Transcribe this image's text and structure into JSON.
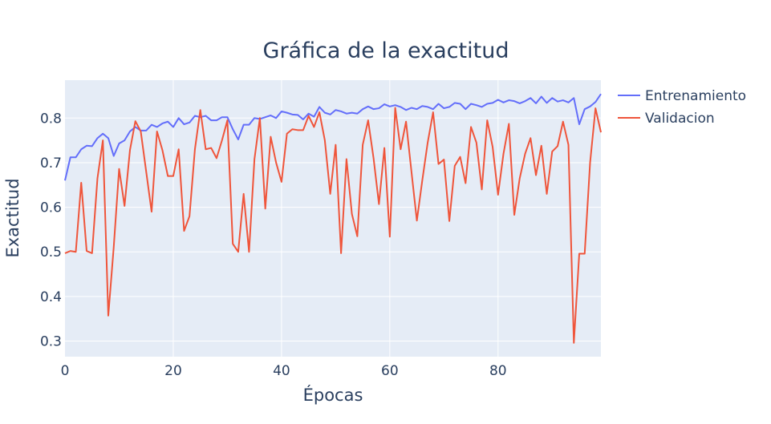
{
  "chart_data": {
    "type": "line",
    "title": "Gráfica de la exactitud",
    "xlabel": "Épocas",
    "ylabel": "Exactitud",
    "xlim": [
      0,
      99
    ],
    "ylim": [
      0.265,
      0.885
    ],
    "x_ticks": [
      0,
      20,
      40,
      60,
      80
    ],
    "y_ticks": [
      0.3,
      0.4,
      0.5,
      0.6,
      0.7,
      0.8
    ],
    "x_tick_labels": [
      "0",
      "20",
      "40",
      "60",
      "80"
    ],
    "y_tick_labels": [
      "0.3",
      "0.4",
      "0.5",
      "0.6",
      "0.7",
      "0.8"
    ],
    "grid": true,
    "legend_position": "top-right",
    "plot_background": "#e5ecf6",
    "series": [
      {
        "name": "Entrenamiento",
        "color": "#636efa",
        "values": [
          0.66,
          0.712,
          0.712,
          0.73,
          0.738,
          0.737,
          0.755,
          0.765,
          0.755,
          0.715,
          0.743,
          0.75,
          0.77,
          0.78,
          0.772,
          0.772,
          0.785,
          0.78,
          0.788,
          0.792,
          0.78,
          0.8,
          0.786,
          0.79,
          0.805,
          0.802,
          0.805,
          0.795,
          0.795,
          0.802,
          0.802,
          0.775,
          0.752,
          0.785,
          0.785,
          0.8,
          0.798,
          0.802,
          0.806,
          0.8,
          0.815,
          0.812,
          0.808,
          0.807,
          0.797,
          0.81,
          0.803,
          0.825,
          0.812,
          0.808,
          0.818,
          0.815,
          0.81,
          0.812,
          0.81,
          0.82,
          0.826,
          0.82,
          0.822,
          0.831,
          0.826,
          0.829,
          0.825,
          0.818,
          0.823,
          0.82,
          0.827,
          0.825,
          0.82,
          0.832,
          0.822,
          0.825,
          0.834,
          0.832,
          0.82,
          0.832,
          0.829,
          0.825,
          0.832,
          0.834,
          0.841,
          0.835,
          0.84,
          0.838,
          0.833,
          0.838,
          0.845,
          0.833,
          0.848,
          0.834,
          0.845,
          0.837,
          0.84,
          0.835,
          0.845,
          0.786,
          0.82,
          0.826,
          0.836,
          0.854
        ]
      },
      {
        "name": "Validacion",
        "color": "#ef553b",
        "values": [
          0.497,
          0.502,
          0.5,
          0.655,
          0.502,
          0.497,
          0.665,
          0.75,
          0.357,
          0.51,
          0.686,
          0.603,
          0.728,
          0.793,
          0.77,
          0.68,
          0.59,
          0.77,
          0.728,
          0.67,
          0.67,
          0.73,
          0.547,
          0.58,
          0.73,
          0.818,
          0.73,
          0.733,
          0.71,
          0.75,
          0.795,
          0.518,
          0.5,
          0.63,
          0.5,
          0.708,
          0.8,
          0.597,
          0.758,
          0.7,
          0.657,
          0.765,
          0.775,
          0.773,
          0.773,
          0.805,
          0.78,
          0.813,
          0.75,
          0.63,
          0.74,
          0.497,
          0.708,
          0.585,
          0.535,
          0.74,
          0.795,
          0.71,
          0.607,
          0.733,
          0.534,
          0.823,
          0.73,
          0.792,
          0.68,
          0.57,
          0.66,
          0.745,
          0.813,
          0.697,
          0.707,
          0.569,
          0.693,
          0.713,
          0.654,
          0.78,
          0.745,
          0.64,
          0.795,
          0.735,
          0.628,
          0.72,
          0.787,
          0.583,
          0.665,
          0.72,
          0.755,
          0.672,
          0.738,
          0.63,
          0.725,
          0.737,
          0.792,
          0.74,
          0.296,
          0.496,
          0.496,
          0.7,
          0.822,
          0.768
        ]
      }
    ]
  }
}
